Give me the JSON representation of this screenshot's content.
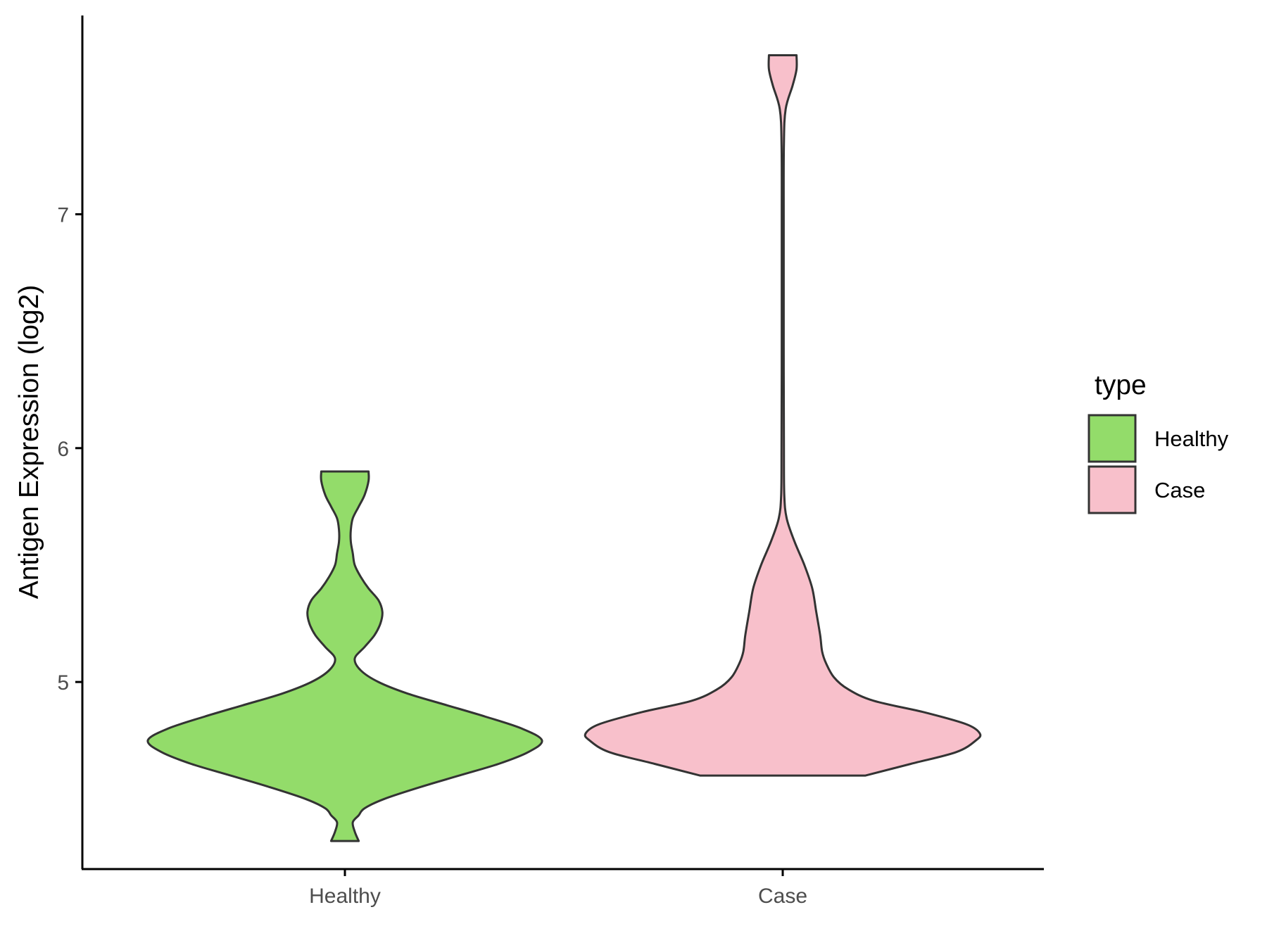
{
  "chart_data": {
    "type": "violin",
    "ylabel": "Antigen Expression (log2)",
    "xlabel": "",
    "categories": [
      "Healthy",
      "Case"
    ],
    "yticks": [
      5,
      6,
      7
    ],
    "ylim": [
      4.2,
      7.85
    ],
    "legend": {
      "title": "type",
      "position": "right",
      "entries": [
        {
          "label": "Healthy",
          "color": "#93DC6A"
        },
        {
          "label": "Case",
          "color": "#F8C0CB"
        }
      ]
    },
    "series": [
      {
        "category": "Healthy",
        "color": "#93DC6A",
        "y_min": 4.32,
        "y_max": 5.9,
        "density_profile": [
          [
            4.32,
            0.07
          ],
          [
            4.36,
            0.05
          ],
          [
            4.4,
            0.04
          ],
          [
            4.43,
            0.07
          ],
          [
            4.46,
            0.1
          ],
          [
            4.5,
            0.2
          ],
          [
            4.55,
            0.38
          ],
          [
            4.6,
            0.58
          ],
          [
            4.65,
            0.78
          ],
          [
            4.7,
            0.93
          ],
          [
            4.75,
            1.0
          ],
          [
            4.8,
            0.9
          ],
          [
            4.85,
            0.72
          ],
          [
            4.9,
            0.52
          ],
          [
            4.95,
            0.32
          ],
          [
            5.0,
            0.17
          ],
          [
            5.05,
            0.08
          ],
          [
            5.1,
            0.05
          ],
          [
            5.15,
            0.1
          ],
          [
            5.2,
            0.15
          ],
          [
            5.25,
            0.18
          ],
          [
            5.3,
            0.19
          ],
          [
            5.35,
            0.17
          ],
          [
            5.4,
            0.12
          ],
          [
            5.45,
            0.08
          ],
          [
            5.5,
            0.05
          ],
          [
            5.55,
            0.04
          ],
          [
            5.6,
            0.03
          ],
          [
            5.65,
            0.03
          ],
          [
            5.7,
            0.04
          ],
          [
            5.75,
            0.07
          ],
          [
            5.8,
            0.1
          ],
          [
            5.86,
            0.12
          ],
          [
            5.9,
            0.12
          ]
        ]
      },
      {
        "category": "Case",
        "color": "#F8C0CB",
        "y_min": 4.6,
        "y_max": 7.68,
        "density_profile": [
          [
            4.6,
            0.42
          ],
          [
            4.65,
            0.65
          ],
          [
            4.7,
            0.88
          ],
          [
            4.75,
            0.98
          ],
          [
            4.78,
            1.0
          ],
          [
            4.82,
            0.93
          ],
          [
            4.87,
            0.72
          ],
          [
            4.92,
            0.46
          ],
          [
            4.97,
            0.33
          ],
          [
            5.02,
            0.26
          ],
          [
            5.08,
            0.22
          ],
          [
            5.13,
            0.2
          ],
          [
            5.2,
            0.19
          ],
          [
            5.3,
            0.17
          ],
          [
            5.4,
            0.15
          ],
          [
            5.5,
            0.11
          ],
          [
            5.6,
            0.06
          ],
          [
            5.7,
            0.02
          ],
          [
            5.8,
            0.008
          ],
          [
            6.0,
            0.006
          ],
          [
            6.5,
            0.005
          ],
          [
            7.0,
            0.005
          ],
          [
            7.3,
            0.006
          ],
          [
            7.45,
            0.015
          ],
          [
            7.55,
            0.05
          ],
          [
            7.62,
            0.07
          ],
          [
            7.68,
            0.07
          ]
        ]
      }
    ]
  }
}
